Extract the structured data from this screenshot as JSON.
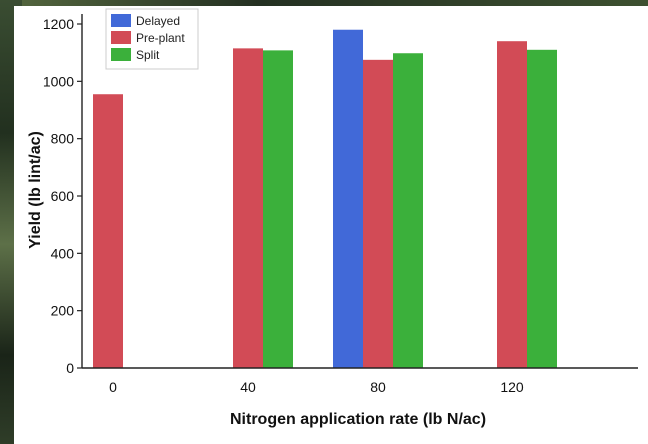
{
  "chart_data": {
    "type": "bar",
    "title": "",
    "xlabel": "Nitrogen application rate (lb N/ac)",
    "ylabel": "Yield (lb lint/ac)",
    "categories": [
      "0",
      "40",
      "80",
      "120"
    ],
    "ylim": [
      0,
      1200
    ],
    "yticks": [
      0,
      200,
      400,
      600,
      800,
      1000,
      1200
    ],
    "grid": false,
    "legend_position": "top-left",
    "series": [
      {
        "name": "Delayed",
        "color": "#4169d8",
        "values": [
          null,
          null,
          1180,
          null
        ]
      },
      {
        "name": "Pre-plant",
        "color": "#d24b56",
        "values": [
          955,
          1115,
          1075,
          1140
        ]
      },
      {
        "name": "Split",
        "color": "#3bb03b",
        "values": [
          null,
          1108,
          1098,
          1110
        ]
      }
    ]
  }
}
